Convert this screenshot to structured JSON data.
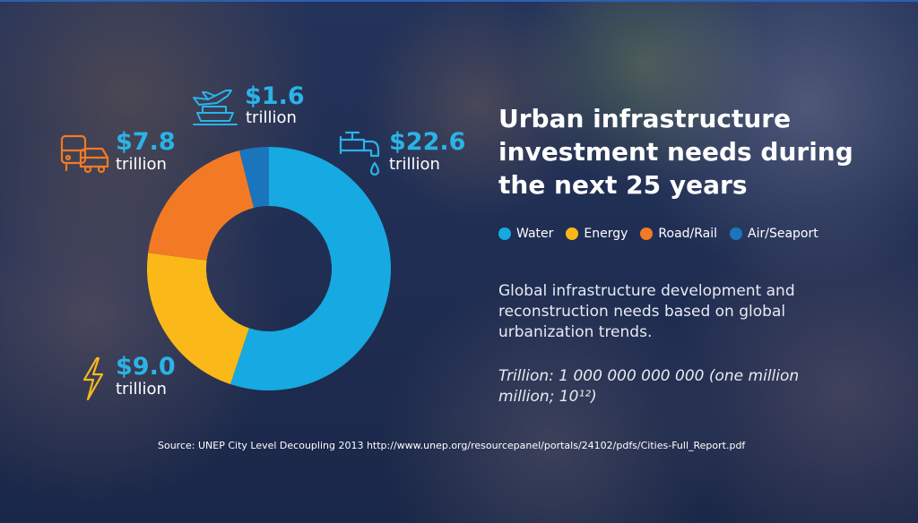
{
  "title": "Urban infrastructure investment needs during the next 25 years",
  "description": "Global infrastructure development and reconstruction needs based on global urbanization trends.",
  "note": "Trillion: 1 000 000 000 000 (one million million; 10¹²)",
  "source": "Source: UNEP City Level Decoupling 2013 http://www.unep.org/resourcepanel/portals/24102/pdfs/Cities-Full_Report.pdf",
  "colors": {
    "water": "#17a9e1",
    "energy": "#fbb919",
    "road_rail": "#f37a24",
    "air_seaport": "#1b75bc",
    "accent_text": "#2bb3e8"
  },
  "icons": {
    "water": "faucet-icon",
    "energy": "lightning-icon",
    "road_rail": "vehicles-icon",
    "air_seaport": "plane-ship-icon"
  },
  "callouts": {
    "water": {
      "amount": "$22.6",
      "unit": "trillion"
    },
    "energy": {
      "amount": "$9.0",
      "unit": "trillion"
    },
    "road_rail": {
      "amount": "$7.8",
      "unit": "trillion"
    },
    "air_seaport": {
      "amount": "$1.6",
      "unit": "trillion"
    }
  },
  "chart_data": {
    "type": "pie",
    "donut": true,
    "categories": [
      "Water",
      "Energy",
      "Road/Rail",
      "Air/Seaport"
    ],
    "values": [
      22.6,
      9.0,
      7.8,
      1.6
    ],
    "unit": "trillion",
    "colors": [
      "#17a9e1",
      "#fbb919",
      "#f37a24",
      "#1b75bc"
    ],
    "legend_position": "right"
  }
}
